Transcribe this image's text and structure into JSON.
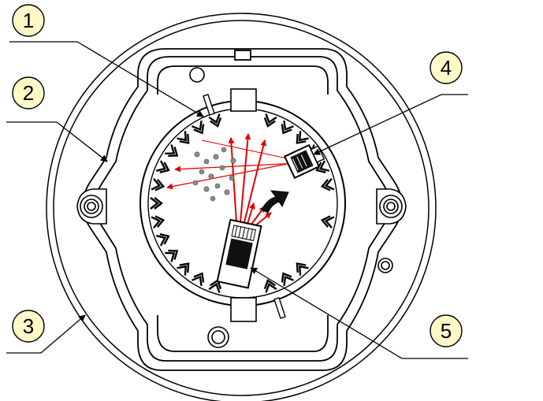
{
  "callouts": [
    {
      "label": "1"
    },
    {
      "label": "2"
    },
    {
      "label": "3"
    },
    {
      "label": "4"
    },
    {
      "label": "5"
    }
  ],
  "colors": {
    "callout_fill": "#fff9c8",
    "line": "#000000",
    "light_ray": "#e00000",
    "smoke_particle": "#8a8a8a",
    "background": "#ffffff"
  },
  "icons": {
    "emitter": "ir-emitter-icon",
    "receiver": "photo-receiver-icon",
    "particles": "smoke-particle-icon"
  }
}
